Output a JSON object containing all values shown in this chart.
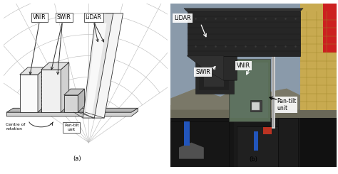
{
  "bg_color": "#ffffff",
  "line_color": "#303030",
  "text_color": "#000000",
  "label_VNIR": "VNIR",
  "label_SWIR": "SWIR",
  "label_LiDAR": "LiDAR",
  "label_centre": "Centre of\nrotation",
  "label_pantilt": "Pan-tilt\nunit",
  "label_a": "(a)",
  "label_b": "(b)",
  "grid_color": "#b8b8b8",
  "schematic": {
    "bg": "#f5f5f5",
    "box_white": "#fafafa",
    "box_gray": "#d8d8d8",
    "box_mid": "#e8e8e8",
    "lidar_panel_light": "#e8e8e8",
    "lidar_panel_dark": "#c8c8c8",
    "base_fill": "#d0d0d0",
    "base_top": "#b8b8b8"
  },
  "photo": {
    "sky": "#8a9aaa",
    "mountain_near": "#6a7070",
    "mountain_far": "#7a8878",
    "lidar_dark": "#2a2a2a",
    "lidar_side": "#353535",
    "swir_dark": "#303030",
    "vnir_green": "#5a6e58",
    "mount_gray": "#606060",
    "base_black": "#111111",
    "box_black1": "#181818",
    "box_black2": "#1e1e1e",
    "box_black3": "#242424",
    "blue_stripe": "#2255bb",
    "red_spot": "#bb3322",
    "yellow_scaff": "#c8a840",
    "pipe_gray": "#b0b0b0",
    "red_top_right": "#cc2222"
  }
}
